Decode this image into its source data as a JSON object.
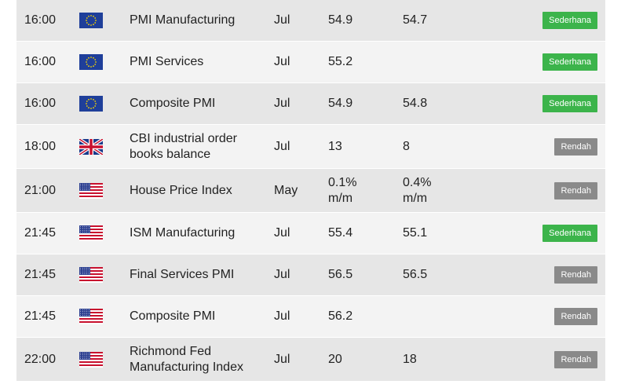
{
  "colors": {
    "medium": "#3cb44b",
    "low": "#8a8a8a",
    "row_alt": "#e6e6e6",
    "row_plain": "#f3f3f3"
  },
  "rows": [
    {
      "time": "16:00",
      "flag": "eu-flag-icon",
      "event": "PMI Manufacturing",
      "period": "Jul",
      "actual": "54.9",
      "forecast": "54.7",
      "impact": "Sederhana",
      "impact_level": "medium"
    },
    {
      "time": "16:00",
      "flag": "eu-flag-icon",
      "event": "PMI Services",
      "period": "Jul",
      "actual": "55.2",
      "forecast": "",
      "impact": "Sederhana",
      "impact_level": "medium"
    },
    {
      "time": "16:00",
      "flag": "eu-flag-icon",
      "event": "Composite PMI",
      "period": "Jul",
      "actual": "54.9",
      "forecast": "54.8",
      "impact": "Sederhana",
      "impact_level": "medium"
    },
    {
      "time": "18:00",
      "flag": "uk-flag-icon",
      "event": "CBI industrial order books balance",
      "period": "Jul",
      "actual": "13",
      "forecast": "8",
      "impact": "Rendah",
      "impact_level": "low"
    },
    {
      "time": "21:00",
      "flag": "us-flag-icon",
      "event": "House Price Index",
      "period": "May",
      "actual": "0.1% m/m",
      "forecast": "0.4% m/m",
      "impact": "Rendah",
      "impact_level": "low"
    },
    {
      "time": "21:45",
      "flag": "us-flag-icon",
      "event": "ISM Manufacturing",
      "period": "Jul",
      "actual": "55.4",
      "forecast": "55.1",
      "impact": "Sederhana",
      "impact_level": "medium"
    },
    {
      "time": "21:45",
      "flag": "us-flag-icon",
      "event": "Final Services PMI",
      "period": "Jul",
      "actual": "56.5",
      "forecast": "56.5",
      "impact": "Rendah",
      "impact_level": "low"
    },
    {
      "time": "21:45",
      "flag": "us-flag-icon",
      "event": "Composite PMI",
      "period": "Jul",
      "actual": "56.2",
      "forecast": "",
      "impact": "Rendah",
      "impact_level": "low"
    },
    {
      "time": "22:00",
      "flag": "us-flag-icon",
      "event": "Richmond Fed Manufacturing Index",
      "period": "Jul",
      "actual": "20",
      "forecast": "18",
      "impact": "Rendah",
      "impact_level": "low"
    }
  ]
}
